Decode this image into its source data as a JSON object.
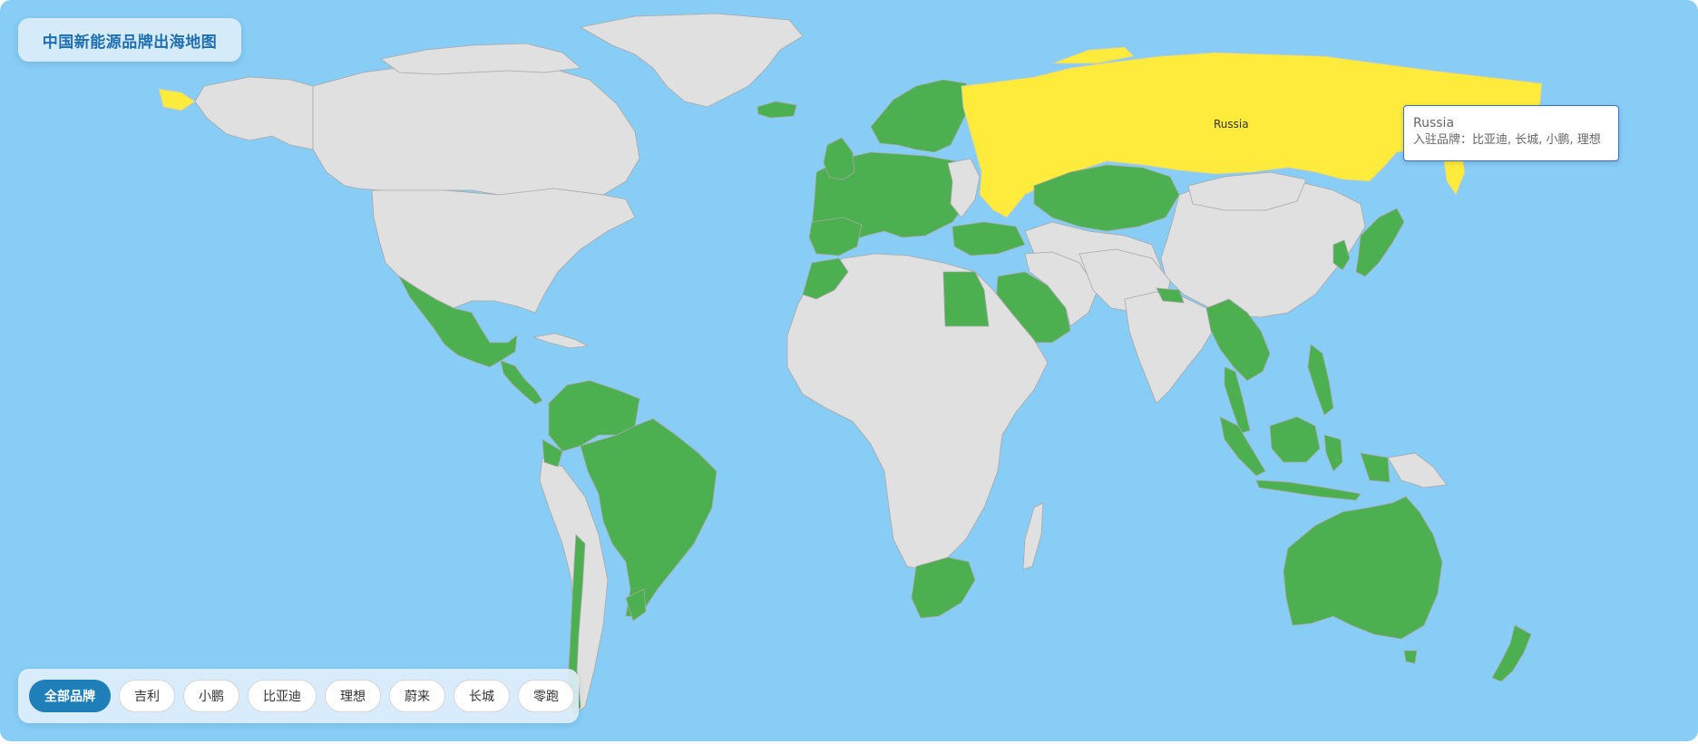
{
  "title": "中国新能源品牌出海地图",
  "map_label": "Russia",
  "tooltip": {
    "country": "Russia",
    "brands_line": "入驻品牌：比亚迪, 长城, 小鹏, 理想"
  },
  "filters": [
    {
      "label": "全部品牌",
      "active": true
    },
    {
      "label": "吉利",
      "active": false
    },
    {
      "label": "小鹏",
      "active": false
    },
    {
      "label": "比亚迪",
      "active": false
    },
    {
      "label": "理想",
      "active": false
    },
    {
      "label": "蔚来",
      "active": false
    },
    {
      "label": "长城",
      "active": false
    },
    {
      "label": "零跑",
      "active": false
    }
  ],
  "colors": {
    "ocean": "#87cdf6",
    "land": "#e0e0e0",
    "brand_present": "#4caf50",
    "highlighted": "#ffeb3b",
    "accent": "#1f7fb8"
  }
}
